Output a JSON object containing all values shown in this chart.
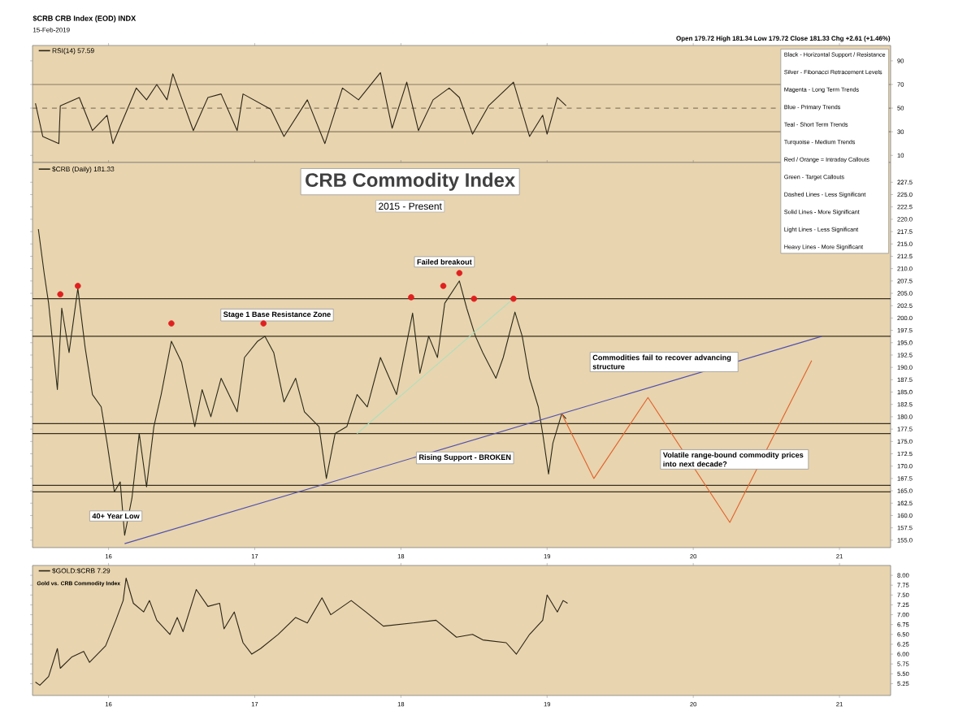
{
  "chart_data": [
    {
      "type": "line",
      "title": "$CRB CRB Index (EOD) INDX",
      "annotations": [
        "15-Feb-2019",
        "Open 179.72 High 181.34 Low 179.72 Close 181.33 Chg +2.61 (+1.46%)"
      ],
      "x": [
        2015.5,
        2015.55,
        2015.66,
        2015.67,
        2015.8,
        2015.89,
        2015.99,
        2016.03,
        2016.19,
        2016.26,
        2016.33,
        2016.4,
        2016.44,
        2016.58,
        2016.68,
        2016.77,
        2016.88,
        2016.92,
        2017.11,
        2017.2,
        2017.36,
        2017.48,
        2017.6,
        2017.71,
        2017.86,
        2017.94,
        2018.04,
        2018.12,
        2018.22,
        2018.33,
        2018.4,
        2018.49,
        2018.6,
        2018.77,
        2018.88,
        2018.97,
        2019.0,
        2019.07,
        2019.13
      ],
      "series": [
        {
          "name": "RSI(14) 57.59",
          "color": "#2b2418",
          "values": [
            54,
            26,
            20,
            52,
            59,
            31,
            44,
            20,
            67,
            57,
            70,
            57,
            79,
            31,
            59,
            62,
            31,
            62,
            49,
            26,
            57,
            20,
            67,
            57,
            80,
            33,
            72,
            31,
            57,
            67,
            59,
            28,
            52,
            72,
            26,
            44,
            28,
            59,
            52
          ]
        }
      ],
      "xlim": [
        2015.48,
        2021.35
      ],
      "ylim": [
        4,
        103
      ],
      "xticks": [
        {
          "value": 2016,
          "label": null
        },
        {
          "value": 2017,
          "label": null
        },
        {
          "value": 2018,
          "label": null
        },
        {
          "value": 2019,
          "label": null
        },
        {
          "value": 2020,
          "label": null
        },
        {
          "value": 2021,
          "label": null
        }
      ],
      "yticks": [
        10,
        30,
        50,
        70,
        90
      ],
      "ref_lines": [
        {
          "axis": "y",
          "value": 70,
          "color": "#8a7a60"
        },
        {
          "axis": "y",
          "value": 50,
          "color": "#8a7a60",
          "line_style": "dashed"
        },
        {
          "axis": "y",
          "value": 30,
          "color": "#8a7a60"
        }
      ],
      "tick_labels": "y",
      "legend": "top left"
    },
    {
      "type": "line",
      "title": "CRB Commodity Index",
      "subtitle": "2015 - Present",
      "annotations": [
        "Black - Horizontal Support / Resistance",
        "Silver - Fibonacci Retracement Levels",
        "Magenta - Long Term Trends",
        "Blue - Primary Trends",
        "Teal - Short Term Trends",
        "Turquoise - Medium Trends",
        "Red / Orange = Intraday Callouts",
        "Green - Target Callouts",
        "Dashed Lines - Less Significant",
        "Solid Lines - More Significant",
        "Light Lines - Less Significant",
        "Heavy Lines - More Significant",
        "Stage 1 Base Resistance Zone",
        "Failed breakout",
        "Commodities fail to recover advancing structure",
        "Rising Support - BROKEN",
        "Volatile range-bound commodity prices into next decade?",
        {
          "text": "40+ Year Low",
          "x": 2016.05,
          "y": 159.9
        }
      ],
      "series": [
        {
          "name": "$CRB (Daily) 181.33",
          "color": "#2a2a1a",
          "x": [
            2015.52,
            2015.56,
            2015.59,
            2015.65,
            2015.68,
            2015.73,
            2015.79,
            2015.84,
            2015.89,
            2015.95,
            2015.99,
            2016.04,
            2016.08,
            2016.11,
            2016.16,
            2016.21,
            2016.26,
            2016.31,
            2016.36,
            2016.43,
            2016.5,
            2016.59,
            2016.64,
            2016.7,
            2016.77,
            2016.88,
            2016.93,
            2017.02,
            2017.07,
            2017.13,
            2017.2,
            2017.28,
            2017.34,
            2017.44,
            2017.49,
            2017.55,
            2017.63,
            2017.7,
            2017.77,
            2017.86,
            2017.97,
            2018.08,
            2018.13,
            2018.19,
            2018.25,
            2018.3,
            2018.4,
            2018.45,
            2018.51,
            2018.56,
            2018.65,
            2018.7,
            2018.78,
            2018.83,
            2018.88,
            2018.94,
            2018.97,
            2019.01,
            2019.04,
            2019.1,
            2019.13
          ],
          "values": [
            218,
            209,
            203,
            185.5,
            202,
            193,
            206,
            194,
            184.5,
            182,
            174.7,
            164.8,
            166.8,
            156,
            163.5,
            176.6,
            165.8,
            178,
            184.5,
            195.3,
            191,
            178,
            185.5,
            180,
            187.8,
            181,
            192,
            195.3,
            196.3,
            193,
            183,
            187.8,
            181,
            178,
            167.5,
            176.6,
            178,
            184.5,
            182,
            192,
            184.5,
            201,
            188.8,
            196.3,
            192,
            203,
            207.5,
            202,
            196.3,
            193,
            187.8,
            192,
            201.2,
            196.3,
            187.8,
            182,
            176.6,
            168.4,
            174.7,
            180.6,
            179.6
          ]
        },
        {
          "color": "#5050b0",
          "x": [
            2016.11,
            2020.88
          ],
          "values": [
            154.3,
            196.3
          ]
        },
        {
          "color": "#a8e0c0",
          "x": [
            2017.7,
            2018.78
          ],
          "values": [
            176.6,
            204.2
          ]
        },
        {
          "color": "#e0602a",
          "x": [
            2019.1,
            2019.32,
            2019.69,
            2020.25,
            2020.81
          ],
          "values": [
            180.6,
            167.5,
            183.9,
            158.6,
            191.4
          ]
        },
        {
          "type": "scatter",
          "color": "#e02020",
          "x": [
            2015.67,
            2015.79,
            2016.43,
            2017.06,
            2018.07,
            2018.29,
            2018.4,
            2018.5,
            2018.77
          ],
          "values": [
            204.8,
            206.5,
            198.9,
            198.9,
            204.2,
            206.5,
            209.1,
            203.9,
            203.9
          ]
        }
      ],
      "xlim": [
        2015.48,
        2021.35
      ],
      "ylim": [
        153.5,
        231.5
      ],
      "xticks": [
        {
          "value": 2016,
          "label": "16"
        },
        {
          "value": 2017,
          "label": "17"
        },
        {
          "value": 2018,
          "label": "18"
        },
        {
          "value": 2019,
          "label": "19"
        },
        {
          "value": 2020,
          "label": "20"
        },
        {
          "value": 2021,
          "label": "21"
        }
      ],
      "yticks": [
        {
          "value": 155,
          "label": "155.0"
        },
        {
          "value": 157.5,
          "label": "157.5"
        },
        {
          "value": 160,
          "label": "160.0"
        },
        {
          "value": 162.5,
          "label": "162.5"
        },
        {
          "value": 165,
          "label": "165.0"
        },
        {
          "value": 167.5,
          "label": "167.5"
        },
        {
          "value": 170,
          "label": "170.0"
        },
        {
          "value": 172.5,
          "label": "172.5"
        },
        {
          "value": 175,
          "label": "175.0"
        },
        {
          "value": 177.5,
          "label": "177.5"
        },
        {
          "value": 180,
          "label": "180.0"
        },
        {
          "value": 182.5,
          "label": "182.5"
        },
        {
          "value": 185,
          "label": "185.0"
        },
        {
          "value": 187.5,
          "label": "187.5"
        },
        {
          "value": 190,
          "label": "190.0"
        },
        {
          "value": 192.5,
          "label": "192.5"
        },
        {
          "value": 195,
          "label": "195.0"
        },
        {
          "value": 197.5,
          "label": "197.5"
        },
        {
          "value": 200,
          "label": "200.0"
        },
        {
          "value": 202.5,
          "label": "202.5"
        },
        {
          "value": 205,
          "label": "205.0"
        },
        {
          "value": 207.5,
          "label": "207.5"
        },
        {
          "value": 210,
          "label": "210.0"
        },
        {
          "value": 212.5,
          "label": "212.5"
        },
        {
          "value": 215,
          "label": "215.0"
        },
        {
          "value": 217.5,
          "label": "217.5"
        },
        {
          "value": 220,
          "label": "220.0"
        },
        {
          "value": 222.5,
          "label": "222.5"
        },
        {
          "value": 225,
          "label": "225.0"
        },
        {
          "value": 227.5,
          "label": "227.5"
        }
      ],
      "ref_lines": [
        {
          "axis": "y",
          "value": 203.9,
          "color": "#3a3020"
        },
        {
          "axis": "y",
          "value": 196.3,
          "color": "#3a3020"
        },
        {
          "axis": "y",
          "value": 178.6,
          "color": "#3a3020"
        },
        {
          "axis": "y",
          "value": 176.6,
          "color": "#3a3020"
        },
        {
          "axis": "y",
          "value": 166.1,
          "color": "#3a3020"
        },
        {
          "axis": "y",
          "value": 164.8,
          "color": "#3a3020"
        }
      ],
      "legend": "top left"
    },
    {
      "type": "line",
      "annotations": [
        "Gold vs. CRB Commodity Index"
      ],
      "series": [
        {
          "name": "$GOLD:$CRB 7.29",
          "color": "#2b2418",
          "x": [
            2015.5,
            2015.53,
            2015.59,
            2015.65,
            2015.67,
            2015.75,
            2015.83,
            2015.87,
            2015.98,
            2016.05,
            2016.1,
            2016.12,
            2016.17,
            2016.24,
            2016.28,
            2016.33,
            2016.42,
            2016.47,
            2016.51,
            2016.6,
            2016.68,
            2016.76,
            2016.79,
            2016.86,
            2016.92,
            2016.98,
            2017.04,
            2017.16,
            2017.28,
            2017.36,
            2017.46,
            2017.52,
            2017.66,
            2017.76,
            2017.88,
            2018.08,
            2018.24,
            2018.38,
            2018.49,
            2018.56,
            2018.72,
            2018.79,
            2018.88,
            2018.97,
            2019.0,
            2019.07,
            2019.11,
            2019.14
          ],
          "values": [
            5.29,
            5.21,
            5.43,
            6.14,
            5.64,
            5.93,
            6.07,
            5.79,
            6.21,
            6.86,
            7.36,
            7.93,
            7.29,
            7.07,
            7.36,
            6.86,
            6.5,
            6.93,
            6.57,
            7.64,
            7.21,
            7.29,
            6.64,
            7.07,
            6.29,
            6.0,
            6.14,
            6.5,
            6.93,
            6.79,
            7.43,
            7.0,
            7.36,
            7.07,
            6.71,
            6.79,
            6.86,
            6.43,
            6.5,
            6.36,
            6.29,
            6.0,
            6.5,
            6.86,
            7.5,
            7.07,
            7.36,
            7.29
          ]
        }
      ],
      "xlim": [
        2015.48,
        2021.35
      ],
      "ylim": [
        4.95,
        8.25
      ],
      "xticks": [
        {
          "value": 2016,
          "label": "16"
        },
        {
          "value": 2017,
          "label": "17"
        },
        {
          "value": 2018,
          "label": "18"
        },
        {
          "value": 2019,
          "label": "19"
        },
        {
          "value": 2020,
          "label": "20"
        },
        {
          "value": 2021,
          "label": "21"
        }
      ],
      "yticks": [
        {
          "value": 5.25,
          "label": "5.25"
        },
        {
          "value": 5.5,
          "label": "5.50"
        },
        {
          "value": 5.75,
          "label": "5.75"
        },
        {
          "value": 6,
          "label": "6.00"
        },
        {
          "value": 6.25,
          "label": "6.25"
        },
        {
          "value": 6.5,
          "label": "6.50"
        },
        {
          "value": 6.75,
          "label": "6.75"
        },
        {
          "value": 7,
          "label": "7.00"
        },
        {
          "value": 7.25,
          "label": "7.25"
        },
        {
          "value": 7.5,
          "label": "7.50"
        },
        {
          "value": 7.75,
          "label": "7.75"
        },
        {
          "value": 8,
          "label": "8.00"
        }
      ],
      "legend": "top left"
    }
  ]
}
